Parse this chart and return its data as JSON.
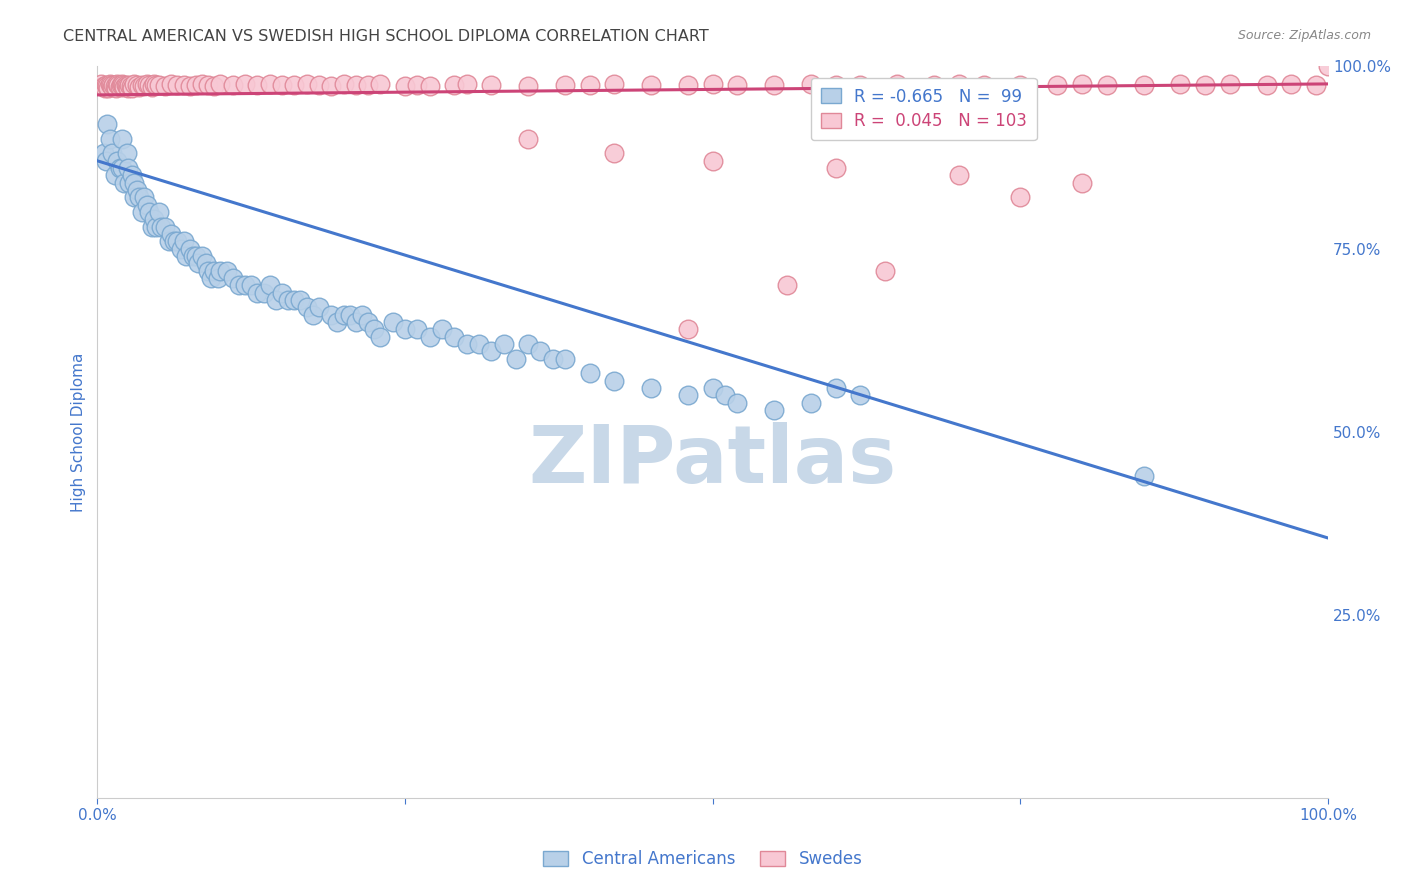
{
  "title": "CENTRAL AMERICAN VS SWEDISH HIGH SCHOOL DIPLOMA CORRELATION CHART",
  "source": "Source: ZipAtlas.com",
  "ylabel": "High School Diploma",
  "legend_entry1": "Central Americans",
  "legend_entry2": "Swedes",
  "r_blue": -0.665,
  "n_blue": 99,
  "r_pink": 0.045,
  "n_pink": 103,
  "blue_color": "#b8d0e8",
  "blue_edge": "#7aa8d0",
  "pink_color": "#f8c8d4",
  "pink_edge": "#e08898",
  "trendline_blue": "#4477cc",
  "trendline_pink": "#cc4477",
  "watermark_color": "#c8d8e8",
  "background_color": "#ffffff",
  "grid_color": "#e0e0e0",
  "title_color": "#444444",
  "tick_color": "#4477cc",
  "source_color": "#888888",
  "xlim": [
    0.0,
    1.0
  ],
  "ylim": [
    0.0,
    1.0
  ],
  "xticks": [
    0.0,
    0.25,
    0.5,
    0.75,
    1.0
  ],
  "xticklabels": [
    "0.0%",
    "",
    "",
    "",
    "100.0%"
  ],
  "yticks_right": [
    0.25,
    0.5,
    0.75,
    1.0
  ],
  "yticklabels_right": [
    "25.0%",
    "50.0%",
    "75.0%",
    "100.0%"
  ],
  "blue_trend_x0": 0.0,
  "blue_trend_y0": 0.87,
  "blue_trend_x1": 1.0,
  "blue_trend_y1": 0.355,
  "pink_trend_x0": 0.0,
  "pink_trend_y0": 0.96,
  "pink_trend_x1": 1.0,
  "pink_trend_y1": 0.975,
  "blue_x": [
    0.005,
    0.007,
    0.008,
    0.01,
    0.012,
    0.014,
    0.016,
    0.018,
    0.02,
    0.02,
    0.022,
    0.024,
    0.025,
    0.026,
    0.028,
    0.03,
    0.03,
    0.032,
    0.034,
    0.036,
    0.038,
    0.04,
    0.042,
    0.044,
    0.046,
    0.048,
    0.05,
    0.052,
    0.055,
    0.058,
    0.06,
    0.062,
    0.065,
    0.068,
    0.07,
    0.072,
    0.075,
    0.078,
    0.08,
    0.082,
    0.085,
    0.088,
    0.09,
    0.092,
    0.095,
    0.098,
    0.1,
    0.105,
    0.11,
    0.115,
    0.12,
    0.125,
    0.13,
    0.135,
    0.14,
    0.145,
    0.15,
    0.155,
    0.16,
    0.165,
    0.17,
    0.175,
    0.18,
    0.19,
    0.195,
    0.2,
    0.205,
    0.21,
    0.215,
    0.22,
    0.225,
    0.23,
    0.24,
    0.25,
    0.26,
    0.27,
    0.28,
    0.29,
    0.3,
    0.31,
    0.32,
    0.33,
    0.34,
    0.35,
    0.36,
    0.37,
    0.38,
    0.4,
    0.42,
    0.45,
    0.48,
    0.5,
    0.51,
    0.52,
    0.55,
    0.58,
    0.6,
    0.62,
    0.85
  ],
  "blue_y": [
    0.88,
    0.87,
    0.92,
    0.9,
    0.88,
    0.85,
    0.87,
    0.86,
    0.9,
    0.86,
    0.84,
    0.88,
    0.86,
    0.84,
    0.85,
    0.84,
    0.82,
    0.83,
    0.82,
    0.8,
    0.82,
    0.81,
    0.8,
    0.78,
    0.79,
    0.78,
    0.8,
    0.78,
    0.78,
    0.76,
    0.77,
    0.76,
    0.76,
    0.75,
    0.76,
    0.74,
    0.75,
    0.74,
    0.74,
    0.73,
    0.74,
    0.73,
    0.72,
    0.71,
    0.72,
    0.71,
    0.72,
    0.72,
    0.71,
    0.7,
    0.7,
    0.7,
    0.69,
    0.69,
    0.7,
    0.68,
    0.69,
    0.68,
    0.68,
    0.68,
    0.67,
    0.66,
    0.67,
    0.66,
    0.65,
    0.66,
    0.66,
    0.65,
    0.66,
    0.65,
    0.64,
    0.63,
    0.65,
    0.64,
    0.64,
    0.63,
    0.64,
    0.63,
    0.62,
    0.62,
    0.61,
    0.62,
    0.6,
    0.62,
    0.61,
    0.6,
    0.6,
    0.58,
    0.57,
    0.56,
    0.55,
    0.56,
    0.55,
    0.54,
    0.53,
    0.54,
    0.56,
    0.55,
    0.44
  ],
  "pink_x": [
    0.003,
    0.005,
    0.006,
    0.007,
    0.008,
    0.009,
    0.01,
    0.011,
    0.012,
    0.013,
    0.014,
    0.015,
    0.016,
    0.017,
    0.018,
    0.019,
    0.02,
    0.021,
    0.022,
    0.023,
    0.024,
    0.025,
    0.026,
    0.027,
    0.028,
    0.03,
    0.032,
    0.034,
    0.036,
    0.038,
    0.04,
    0.042,
    0.044,
    0.046,
    0.048,
    0.05,
    0.055,
    0.06,
    0.065,
    0.07,
    0.075,
    0.08,
    0.085,
    0.09,
    0.095,
    0.1,
    0.11,
    0.12,
    0.13,
    0.14,
    0.15,
    0.16,
    0.17,
    0.18,
    0.19,
    0.2,
    0.21,
    0.22,
    0.23,
    0.25,
    0.26,
    0.27,
    0.29,
    0.3,
    0.32,
    0.35,
    0.38,
    0.4,
    0.42,
    0.45,
    0.48,
    0.5,
    0.52,
    0.55,
    0.58,
    0.6,
    0.62,
    0.65,
    0.68,
    0.7,
    0.72,
    0.75,
    0.78,
    0.8,
    0.82,
    0.85,
    0.88,
    0.9,
    0.92,
    0.95,
    0.97,
    0.99,
    1.0,
    0.35,
    0.42,
    0.5,
    0.6,
    0.7,
    0.8,
    0.75,
    0.48,
    0.56,
    0.64
  ],
  "pink_y": [
    0.975,
    0.972,
    0.97,
    0.974,
    0.972,
    0.97,
    0.975,
    0.973,
    0.971,
    0.974,
    0.972,
    0.97,
    0.975,
    0.973,
    0.971,
    0.974,
    0.975,
    0.973,
    0.971,
    0.974,
    0.972,
    0.97,
    0.974,
    0.972,
    0.97,
    0.975,
    0.973,
    0.971,
    0.974,
    0.972,
    0.975,
    0.973,
    0.971,
    0.975,
    0.973,
    0.974,
    0.972,
    0.975,
    0.973,
    0.974,
    0.972,
    0.973,
    0.975,
    0.974,
    0.972,
    0.975,
    0.973,
    0.975,
    0.973,
    0.975,
    0.974,
    0.973,
    0.975,
    0.974,
    0.972,
    0.975,
    0.973,
    0.974,
    0.975,
    0.972,
    0.974,
    0.972,
    0.973,
    0.975,
    0.974,
    0.972,
    0.973,
    0.974,
    0.975,
    0.973,
    0.974,
    0.975,
    0.973,
    0.974,
    0.975,
    0.973,
    0.974,
    0.975,
    0.973,
    0.975,
    0.974,
    0.973,
    0.974,
    0.975,
    0.974,
    0.973,
    0.975,
    0.974,
    0.975,
    0.973,
    0.975,
    0.974,
    1.0,
    0.9,
    0.88,
    0.87,
    0.86,
    0.85,
    0.84,
    0.82,
    0.64,
    0.7,
    0.72
  ]
}
